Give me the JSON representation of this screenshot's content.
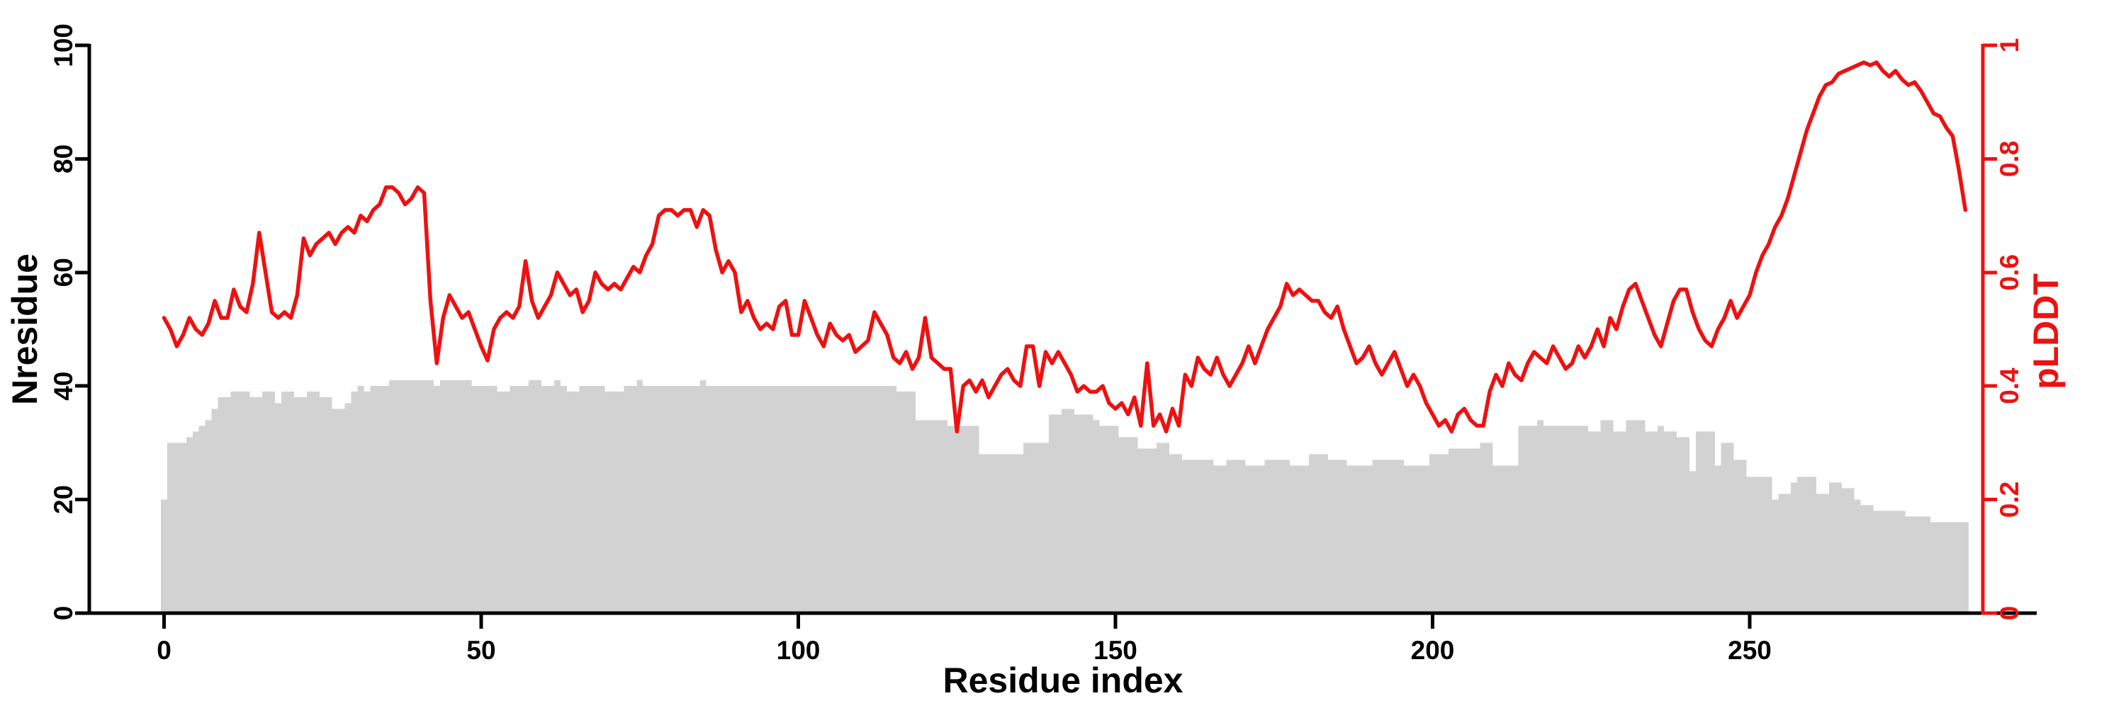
{
  "chart_data": {
    "type": "line",
    "title": "",
    "xlabel": "Residue index",
    "ylabel_left": "Nresidue",
    "ylabel_right": "pLDDT",
    "x_start": 0,
    "x_step": 1,
    "xlim": [
      0,
      290
    ],
    "ylim_left": [
      0,
      100
    ],
    "ylim_right": [
      0,
      1
    ],
    "grid": false,
    "legend_position": "none",
    "colors": {
      "plddt_line": "#ee1111",
      "nresidue_area": "#d2d2d2",
      "axis": "#000000",
      "background": "#ffffff"
    },
    "x_ticks": [
      {
        "label": "0",
        "value": 0
      },
      {
        "label": "50",
        "value": 50
      },
      {
        "label": "100",
        "value": 100
      },
      {
        "label": "150",
        "value": 150
      },
      {
        "label": "200",
        "value": 200
      },
      {
        "label": "250",
        "value": 250
      }
    ],
    "y_ticks_left": [
      {
        "label": "0",
        "value": 0
      },
      {
        "label": "20",
        "value": 20
      },
      {
        "label": "40",
        "value": 40
      },
      {
        "label": "60",
        "value": 60
      },
      {
        "label": "80",
        "value": 80
      },
      {
        "label": "100",
        "value": 100
      }
    ],
    "y_ticks_right": [
      {
        "label": "0",
        "value": 0
      },
      {
        "label": "0.2",
        "value": 0.2
      },
      {
        "label": "0.4",
        "value": 0.4
      },
      {
        "label": "0.6",
        "value": 0.6
      },
      {
        "label": "0.8",
        "value": 0.8
      },
      {
        "label": "1",
        "value": 1
      }
    ],
    "series": [
      {
        "name": "Nresidue",
        "type": "area-step",
        "axis": "left",
        "color": "#d2d2d2",
        "values": [
          20,
          30,
          30,
          30,
          31,
          32,
          33,
          34,
          36,
          38,
          38,
          39,
          39,
          39,
          38,
          38,
          39,
          39,
          37,
          39,
          39,
          38,
          38,
          39,
          39,
          38,
          38,
          36,
          36,
          37,
          39,
          40,
          39,
          40,
          40,
          40,
          41,
          41,
          41,
          41,
          41,
          41,
          41,
          40,
          41,
          41,
          41,
          41,
          41,
          40,
          40,
          40,
          40,
          39,
          39,
          40,
          40,
          40,
          41,
          41,
          40,
          40,
          41,
          40,
          39,
          39,
          40,
          40,
          40,
          40,
          39,
          39,
          39,
          40,
          40,
          41,
          40,
          40,
          40,
          40,
          40,
          40,
          40,
          40,
          40,
          41,
          40,
          40,
          40,
          40,
          40,
          40,
          40,
          40,
          40,
          40,
          40,
          40,
          40,
          40,
          40,
          40,
          40,
          40,
          40,
          40,
          40,
          40,
          40,
          40,
          40,
          40,
          40,
          40,
          40,
          40,
          39,
          39,
          39,
          34,
          34,
          34,
          34,
          34,
          33,
          33,
          33,
          33,
          33,
          28,
          28,
          28,
          28,
          28,
          28,
          28,
          30,
          30,
          30,
          30,
          35,
          35,
          36,
          36,
          35,
          35,
          35,
          34,
          33,
          33,
          33,
          31,
          31,
          31,
          29,
          29,
          29,
          30,
          30,
          28,
          28,
          27,
          27,
          27,
          27,
          27,
          26,
          26,
          27,
          27,
          27,
          26,
          26,
          26,
          27,
          27,
          27,
          27,
          26,
          26,
          26,
          28,
          28,
          28,
          27,
          27,
          27,
          26,
          26,
          26,
          26,
          27,
          27,
          27,
          27,
          27,
          26,
          26,
          26,
          26,
          28,
          28,
          28,
          29,
          29,
          29,
          29,
          29,
          30,
          30,
          26,
          26,
          26,
          26,
          33,
          33,
          33,
          34,
          33,
          33,
          33,
          33,
          33,
          33,
          33,
          32,
          32,
          34,
          34,
          32,
          32,
          34,
          34,
          34,
          32,
          32,
          33,
          32,
          32,
          31,
          31,
          25,
          32,
          32,
          32,
          26,
          30,
          30,
          27,
          27,
          24,
          24,
          24,
          24,
          20,
          21,
          21,
          23,
          24,
          24,
          24,
          21,
          21,
          23,
          23,
          22,
          22,
          20,
          19,
          19,
          18,
          18,
          18,
          18,
          18,
          17,
          17,
          17,
          17,
          16,
          16,
          16,
          16,
          16,
          16
        ]
      },
      {
        "name": "pLDDT",
        "type": "line",
        "axis": "right",
        "color": "#ee1111",
        "values": [
          0.52,
          0.5,
          0.47,
          0.49,
          0.52,
          0.5,
          0.49,
          0.51,
          0.55,
          0.52,
          0.52,
          0.57,
          0.54,
          0.53,
          0.58,
          0.67,
          0.6,
          0.53,
          0.52,
          0.53,
          0.52,
          0.56,
          0.66,
          0.63,
          0.65,
          0.66,
          0.67,
          0.65,
          0.67,
          0.68,
          0.67,
          0.7,
          0.69,
          0.71,
          0.72,
          0.75,
          0.75,
          0.74,
          0.72,
          0.73,
          0.75,
          0.74,
          0.55,
          0.44,
          0.52,
          0.56,
          0.54,
          0.52,
          0.53,
          0.5,
          0.47,
          0.445,
          0.5,
          0.52,
          0.53,
          0.52,
          0.54,
          0.62,
          0.55,
          0.52,
          0.54,
          0.56,
          0.6,
          0.58,
          0.56,
          0.57,
          0.53,
          0.55,
          0.6,
          0.58,
          0.57,
          0.58,
          0.57,
          0.59,
          0.61,
          0.6,
          0.63,
          0.65,
          0.7,
          0.71,
          0.71,
          0.7,
          0.71,
          0.71,
          0.68,
          0.71,
          0.7,
          0.64,
          0.6,
          0.62,
          0.6,
          0.53,
          0.55,
          0.52,
          0.5,
          0.51,
          0.5,
          0.54,
          0.55,
          0.49,
          0.49,
          0.55,
          0.52,
          0.49,
          0.47,
          0.51,
          0.49,
          0.48,
          0.49,
          0.46,
          0.47,
          0.48,
          0.53,
          0.51,
          0.49,
          0.45,
          0.44,
          0.46,
          0.43,
          0.45,
          0.52,
          0.45,
          0.44,
          0.43,
          0.43,
          0.32,
          0.4,
          0.41,
          0.39,
          0.41,
          0.38,
          0.4,
          0.42,
          0.43,
          0.41,
          0.4,
          0.47,
          0.47,
          0.4,
          0.46,
          0.44,
          0.46,
          0.44,
          0.42,
          0.39,
          0.4,
          0.39,
          0.39,
          0.4,
          0.37,
          0.36,
          0.37,
          0.35,
          0.38,
          0.33,
          0.44,
          0.33,
          0.35,
          0.32,
          0.36,
          0.33,
          0.42,
          0.4,
          0.45,
          0.43,
          0.42,
          0.45,
          0.42,
          0.4,
          0.42,
          0.44,
          0.47,
          0.44,
          0.47,
          0.5,
          0.52,
          0.54,
          0.58,
          0.56,
          0.57,
          0.56,
          0.55,
          0.55,
          0.53,
          0.52,
          0.54,
          0.5,
          0.47,
          0.44,
          0.45,
          0.47,
          0.44,
          0.42,
          0.44,
          0.46,
          0.43,
          0.4,
          0.42,
          0.4,
          0.37,
          0.35,
          0.33,
          0.34,
          0.32,
          0.35,
          0.36,
          0.34,
          0.33,
          0.33,
          0.39,
          0.42,
          0.4,
          0.44,
          0.42,
          0.41,
          0.44,
          0.46,
          0.45,
          0.44,
          0.47,
          0.45,
          0.43,
          0.44,
          0.47,
          0.45,
          0.47,
          0.5,
          0.47,
          0.52,
          0.5,
          0.54,
          0.57,
          0.58,
          0.55,
          0.52,
          0.49,
          0.47,
          0.51,
          0.55,
          0.57,
          0.57,
          0.53,
          0.5,
          0.48,
          0.47,
          0.5,
          0.52,
          0.55,
          0.52,
          0.54,
          0.56,
          0.6,
          0.63,
          0.65,
          0.68,
          0.7,
          0.73,
          0.77,
          0.81,
          0.85,
          0.88,
          0.91,
          0.93,
          0.935,
          0.95,
          0.955,
          0.96,
          0.965,
          0.97,
          0.965,
          0.97,
          0.955,
          0.945,
          0.955,
          0.94,
          0.93,
          0.935,
          0.92,
          0.9,
          0.88,
          0.875,
          0.855,
          0.84,
          0.78,
          0.71
        ]
      }
    ]
  }
}
